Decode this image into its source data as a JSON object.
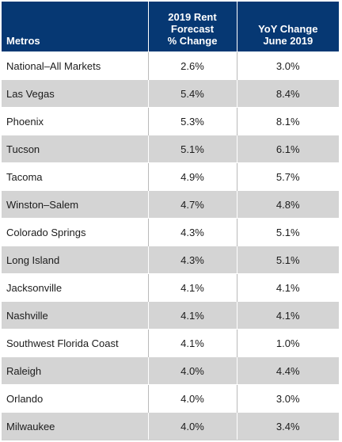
{
  "chart_data": {
    "type": "table",
    "columns": [
      "Metros",
      "2019 Rent Forecast % Change",
      "YoY Change June 2019"
    ],
    "header_lines": [
      [
        "Metros"
      ],
      [
        "2019 Rent",
        "Forecast",
        "% Change"
      ],
      [
        "YoY Change",
        "June 2019"
      ]
    ],
    "rows": [
      [
        "National–All Markets",
        "2.6%",
        "3.0%"
      ],
      [
        "Las Vegas",
        "5.4%",
        "8.4%"
      ],
      [
        "Phoenix",
        "5.3%",
        "8.1%"
      ],
      [
        "Tucson",
        "5.1%",
        "6.1%"
      ],
      [
        "Tacoma",
        "4.9%",
        "5.7%"
      ],
      [
        "Winston–Salem",
        "4.7%",
        "4.8%"
      ],
      [
        "Colorado Springs",
        "4.3%",
        "5.1%"
      ],
      [
        "Long Island",
        "4.3%",
        "5.1%"
      ],
      [
        "Jacksonville",
        "4.1%",
        "4.1%"
      ],
      [
        "Nashville",
        "4.1%",
        "4.1%"
      ],
      [
        "Southwest Florida Coast",
        "4.1%",
        "1.0%"
      ],
      [
        "Raleigh",
        "4.0%",
        "4.4%"
      ],
      [
        "Orlando",
        "4.0%",
        "3.0%"
      ],
      [
        "Milwaukee",
        "4.0%",
        "3.4%"
      ]
    ]
  },
  "colors": {
    "header_background": "#063873",
    "header_text": "#ffffff",
    "stripe_background": "#d4d4d4",
    "body_text": "#1c1c1c"
  }
}
